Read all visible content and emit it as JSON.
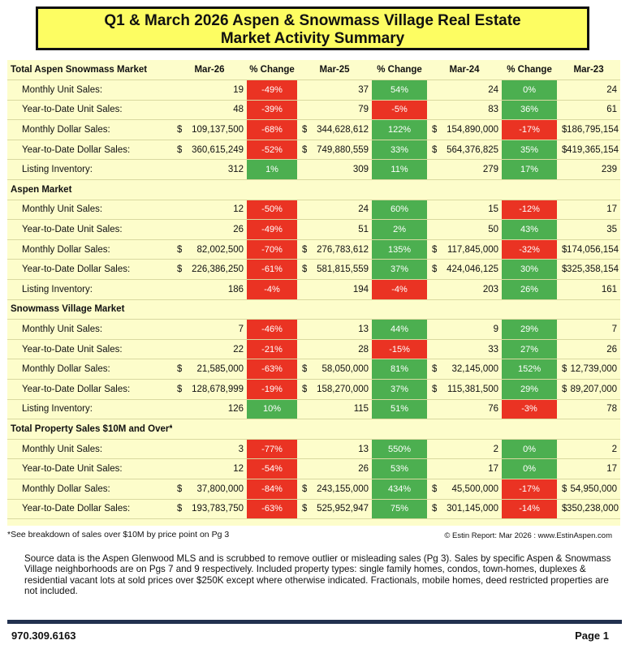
{
  "title": {
    "line1": "Q1 & March 2026 Aspen & Snowmass Village Real Estate",
    "line2": "Market Activity Summary"
  },
  "columns": {
    "mar26": "Mar-26",
    "chg1": "% Change",
    "mar25": "Mar-25",
    "chg2": "% Change",
    "mar24": "Mar-24",
    "chg3": "% Change",
    "mar23": "Mar-23"
  },
  "colors": {
    "red": "#ea3323",
    "green": "#4caf50",
    "title_bg": "#fdfd62",
    "table_bg": "#fdfdcb",
    "rule": "#22314f"
  },
  "sections": [
    {
      "title": "Total Aspen Snowmass Market",
      "rows": [
        {
          "label": "Monthly Unit Sales:",
          "cur": "",
          "v26": "19",
          "c1": "-49%",
          "c1c": "red",
          "v25": "37",
          "c2": "54%",
          "c2c": "green",
          "v24": "24",
          "c3": "0%",
          "c3c": "green",
          "v23": "24"
        },
        {
          "label": "Year-to-Date Unit Sales:",
          "cur": "",
          "v26": "48",
          "c1": "-39%",
          "c1c": "red",
          "v25": "79",
          "c2": "-5%",
          "c2c": "red",
          "v24": "83",
          "c3": "36%",
          "c3c": "green",
          "v23": "61"
        },
        {
          "label": "Monthly Dollar Sales:",
          "cur": "$",
          "v26": "109,137,500",
          "c1": "-68%",
          "c1c": "red",
          "v25": "344,628,612",
          "c2": "122%",
          "c2c": "green",
          "v24": "154,890,000",
          "c3": "-17%",
          "c3c": "red",
          "v23": "186,795,154"
        },
        {
          "label": "Year-to-Date Dollar Sales:",
          "cur": "$",
          "v26": "360,615,249",
          "c1": "-52%",
          "c1c": "red",
          "v25": "749,880,559",
          "c2": "33%",
          "c2c": "green",
          "v24": "564,376,825",
          "c3": "35%",
          "c3c": "green",
          "v23": "419,365,154"
        },
        {
          "label": "Listing Inventory:",
          "cur": "",
          "v26": "312",
          "c1": "1%",
          "c1c": "green",
          "v25": "309",
          "c2": "11%",
          "c2c": "green",
          "v24": "279",
          "c3": "17%",
          "c3c": "green",
          "v23": "239"
        }
      ]
    },
    {
      "title": "Aspen Market",
      "rows": [
        {
          "label": "Monthly Unit Sales:",
          "cur": "",
          "v26": "12",
          "c1": "-50%",
          "c1c": "red",
          "v25": "24",
          "c2": "60%",
          "c2c": "green",
          "v24": "15",
          "c3": "-12%",
          "c3c": "red",
          "v23": "17"
        },
        {
          "label": "Year-to-Date Unit Sales:",
          "cur": "",
          "v26": "26",
          "c1": "-49%",
          "c1c": "red",
          "v25": "51",
          "c2": "2%",
          "c2c": "green",
          "v24": "50",
          "c3": "43%",
          "c3c": "green",
          "v23": "35"
        },
        {
          "label": "Monthly Dollar Sales:",
          "cur": "$",
          "v26": "82,002,500",
          "c1": "-70%",
          "c1c": "red",
          "v25": "276,783,612",
          "c2": "135%",
          "c2c": "green",
          "v24": "117,845,000",
          "c3": "-32%",
          "c3c": "red",
          "v23": "174,056,154"
        },
        {
          "label": "Year-to-Date Dollar Sales:",
          "cur": "$",
          "v26": "226,386,250",
          "c1": "-61%",
          "c1c": "red",
          "v25": "581,815,559",
          "c2": "37%",
          "c2c": "green",
          "v24": "424,046,125",
          "c3": "30%",
          "c3c": "green",
          "v23": "325,358,154"
        },
        {
          "label": "Listing Inventory:",
          "cur": "",
          "v26": "186",
          "c1": "-4%",
          "c1c": "red",
          "v25": "194",
          "c2": "-4%",
          "c2c": "red",
          "v24": "203",
          "c3": "26%",
          "c3c": "green",
          "v23": "161"
        }
      ]
    },
    {
      "title": "Snowmass Village Market",
      "rows": [
        {
          "label": "Monthly Unit Sales:",
          "cur": "",
          "v26": "7",
          "c1": "-46%",
          "c1c": "red",
          "v25": "13",
          "c2": "44%",
          "c2c": "green",
          "v24": "9",
          "c3": "29%",
          "c3c": "green",
          "v23": "7"
        },
        {
          "label": "Year-to-Date Unit Sales:",
          "cur": "",
          "v26": "22",
          "c1": "-21%",
          "c1c": "red",
          "v25": "28",
          "c2": "-15%",
          "c2c": "red",
          "v24": "33",
          "c3": "27%",
          "c3c": "green",
          "v23": "26"
        },
        {
          "label": "Monthly Dollar Sales:",
          "cur": "$",
          "v26": "21,585,000",
          "c1": "-63%",
          "c1c": "red",
          "v25": "58,050,000",
          "c2": "81%",
          "c2c": "green",
          "v24": "32,145,000",
          "c3": "152%",
          "c3c": "green",
          "v23": "12,739,000"
        },
        {
          "label": "Year-to-Date Dollar Sales:",
          "cur": "$",
          "v26": "128,678,999",
          "c1": "-19%",
          "c1c": "red",
          "v25": "158,270,000",
          "c2": "37%",
          "c2c": "green",
          "v24": "115,381,500",
          "c3": "29%",
          "c3c": "green",
          "v23": "89,207,000"
        },
        {
          "label": "Listing Inventory:",
          "cur": "",
          "v26": "126",
          "c1": "10%",
          "c1c": "green",
          "v25": "115",
          "c2": "51%",
          "c2c": "green",
          "v24": "76",
          "c3": "-3%",
          "c3c": "red",
          "v23": "78"
        }
      ]
    },
    {
      "title": "Total Property Sales $10M and Over*",
      "rows": [
        {
          "label": "Monthly Unit Sales:",
          "cur": "",
          "v26": "3",
          "c1": "-77%",
          "c1c": "red",
          "v25": "13",
          "c2": "550%",
          "c2c": "green",
          "v24": "2",
          "c3": "0%",
          "c3c": "green",
          "v23": "2"
        },
        {
          "label": "Year-to-Date Unit Sales:",
          "cur": "",
          "v26": "12",
          "c1": "-54%",
          "c1c": "red",
          "v25": "26",
          "c2": "53%",
          "c2c": "green",
          "v24": "17",
          "c3": "0%",
          "c3c": "green",
          "v23": "17"
        },
        {
          "label": "Monthly Dollar Sales:",
          "cur": "$",
          "v26": "37,800,000",
          "c1": "-84%",
          "c1c": "red",
          "v25": "243,155,000",
          "c2": "434%",
          "c2c": "green",
          "v24": "45,500,000",
          "c3": "-17%",
          "c3c": "red",
          "v23": "54,950,000"
        },
        {
          "label": "Year-to-Date Dollar Sales:",
          "cur": "$",
          "v26": "193,783,750",
          "c1": "-63%",
          "c1c": "red",
          "v25": "525,952,947",
          "c2": "75%",
          "c2c": "green",
          "v24": "301,145,000",
          "c3": "-14%",
          "c3c": "red",
          "v23": "350,238,000"
        }
      ]
    }
  ],
  "footnote": "*See breakdown of sales over $10M by price point on Pg 3",
  "copyright": "© Estin Report: Mar 2026 : www.EstinAspen.com",
  "source_text": "Source data is the Aspen Glenwood MLS and is scrubbed to remove outlier or misleading sales (Pg 3). Sales by specific Aspen & Snowmass Village neighborhoods are on Pgs 7 and 9 respectively. Included property types: single family homes, condos, town-homes, duplexes & residential vacant lots at sold prices over $250K except where otherwise indicated. Fractionals, mobile homes, deed restricted properties are not included.",
  "footer": {
    "phone": "970.309.6163",
    "page": "Page 1"
  }
}
